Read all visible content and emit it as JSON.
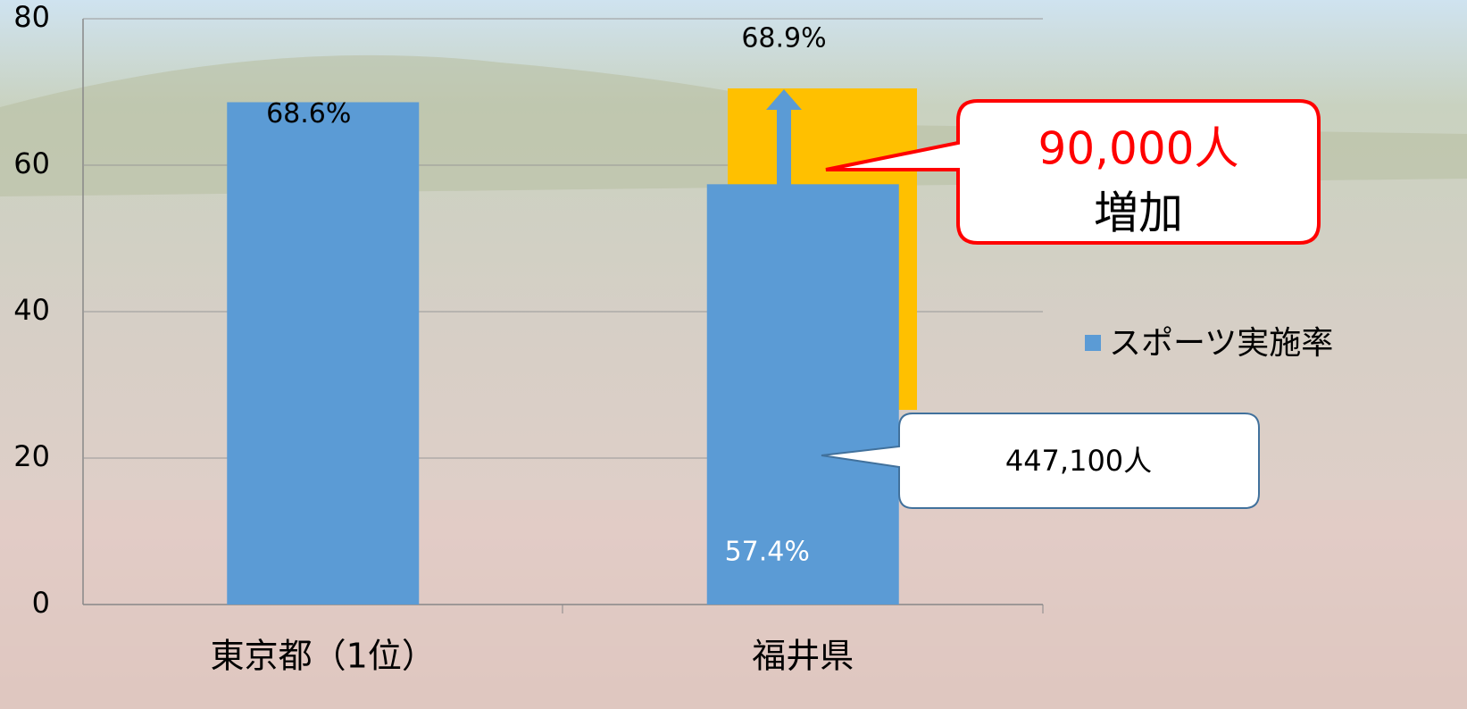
{
  "chart_data": {
    "type": "bar",
    "categories": [
      "東京都（1位）",
      "福井県"
    ],
    "series": [
      {
        "name": "スポーツ実施率",
        "color": "#5b9bd5",
        "values": [
          68.6,
          57.4
        ],
        "value_labels": [
          "68.6%",
          "57.4%"
        ]
      }
    ],
    "ylim": [
      0,
      80
    ],
    "yticks": [
      0,
      20,
      40,
      60,
      80
    ],
    "grid": true,
    "legend": "right",
    "annotations": {
      "target": "68.9%",
      "increase_value": "90,000人",
      "increase_label": "増加",
      "current": "447,100人"
    }
  }
}
